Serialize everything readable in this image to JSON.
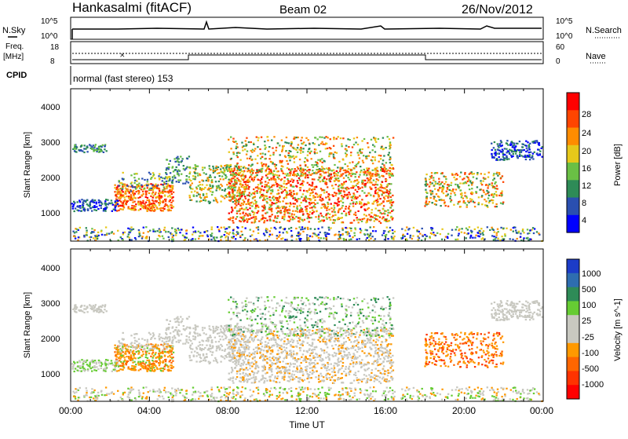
{
  "header": {
    "title": "Hankasalmi (fitACF)",
    "beam": "Beam 02",
    "date": "26/Nov/2012"
  },
  "strip_panels": {
    "nsky": {
      "label": "N.Sky",
      "ticks": [
        "10^5",
        "10^0"
      ]
    },
    "nsearch": {
      "label": "N.Search",
      "ticks": [
        "10^5",
        "10^0"
      ]
    },
    "freq": {
      "label_line1": "Freq.",
      "label_line2": "[MHz]",
      "ticks": [
        "18",
        "8"
      ]
    },
    "nave": {
      "label": "Nave",
      "ticks": [
        "60",
        "0"
      ]
    },
    "cpid": {
      "label": "CPID",
      "text": "normal (fast stereo) 153"
    }
  },
  "colors": {
    "power": [
      "#0000ff",
      "#2a4fb0",
      "#2e8b57",
      "#6abf45",
      "#e6c81a",
      "#ff8c00",
      "#ff4500",
      "#ff0000"
    ],
    "velocity": [
      "#1c3cc8",
      "#2e6db0",
      "#2e8b57",
      "#66cc33",
      "#c8c8c0",
      "#c8c8c0",
      "#ff9900",
      "#ff6600",
      "#ff3300",
      "#ff0000"
    ]
  },
  "chart_data": [
    {
      "type": "heatmap",
      "name": "Power",
      "ylabel": "Slant Range [km]",
      "xlim": [
        0,
        24
      ],
      "ylim": [
        180,
        4500
      ],
      "yticks": [
        "4000",
        "3000",
        "2000",
        "1000"
      ],
      "colorbar": {
        "label": "Power [dB]",
        "ticks": [
          "28",
          "24",
          "20",
          "16",
          "12",
          "8",
          "4"
        ]
      }
    },
    {
      "type": "heatmap",
      "name": "Velocity",
      "ylabel": "Slant Range [km]",
      "xlabel": "Time UT",
      "xlim": [
        0,
        24
      ],
      "ylim": [
        180,
        4500
      ],
      "yticks": [
        "4000",
        "3000",
        "2000",
        "1000"
      ],
      "xticks": [
        "00:00",
        "04:00",
        "08:00",
        "12:00",
        "16:00",
        "20:00",
        "00:00"
      ],
      "colorbar": {
        "label": "Velocity [m s^-1]",
        "ticks": [
          "1000",
          "500",
          "100",
          "25",
          "-25",
          "-100",
          "-500",
          "-1000"
        ]
      }
    }
  ]
}
